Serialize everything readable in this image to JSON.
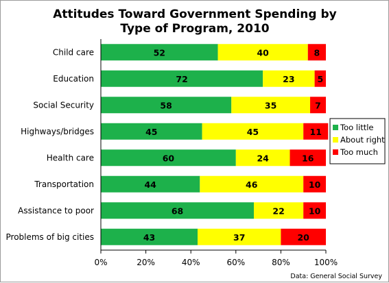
{
  "chart_data": {
    "type": "bar",
    "orientation": "horizontal",
    "stacked": true,
    "title": "Attitudes Toward Government Spending by Type of Program, 2010",
    "title_lines": [
      "Attitudes Toward Government Spending by",
      "Type of Program, 2010"
    ],
    "categories": [
      "Child care",
      "Education",
      "Social Security",
      "Highways/bridges",
      "Health care",
      "Transportation",
      "Assistance to poor",
      "Problems of big cities"
    ],
    "series": [
      {
        "name": "Too little",
        "color": "#1db14b",
        "values": [
          52,
          72,
          58,
          45,
          60,
          44,
          68,
          43
        ]
      },
      {
        "name": "About right",
        "color": "#ffff00",
        "values": [
          40,
          23,
          35,
          45,
          24,
          46,
          22,
          37
        ]
      },
      {
        "name": "Too much",
        "color": "#ff0000",
        "values": [
          8,
          5,
          7,
          11,
          16,
          10,
          10,
          20
        ]
      }
    ],
    "xlim": [
      0,
      100
    ],
    "xticks": [
      "0%",
      "20%",
      "40%",
      "60%",
      "80%",
      "100%"
    ],
    "legend_position": "right",
    "grid": false,
    "source": "Data: General Social Survey"
  }
}
